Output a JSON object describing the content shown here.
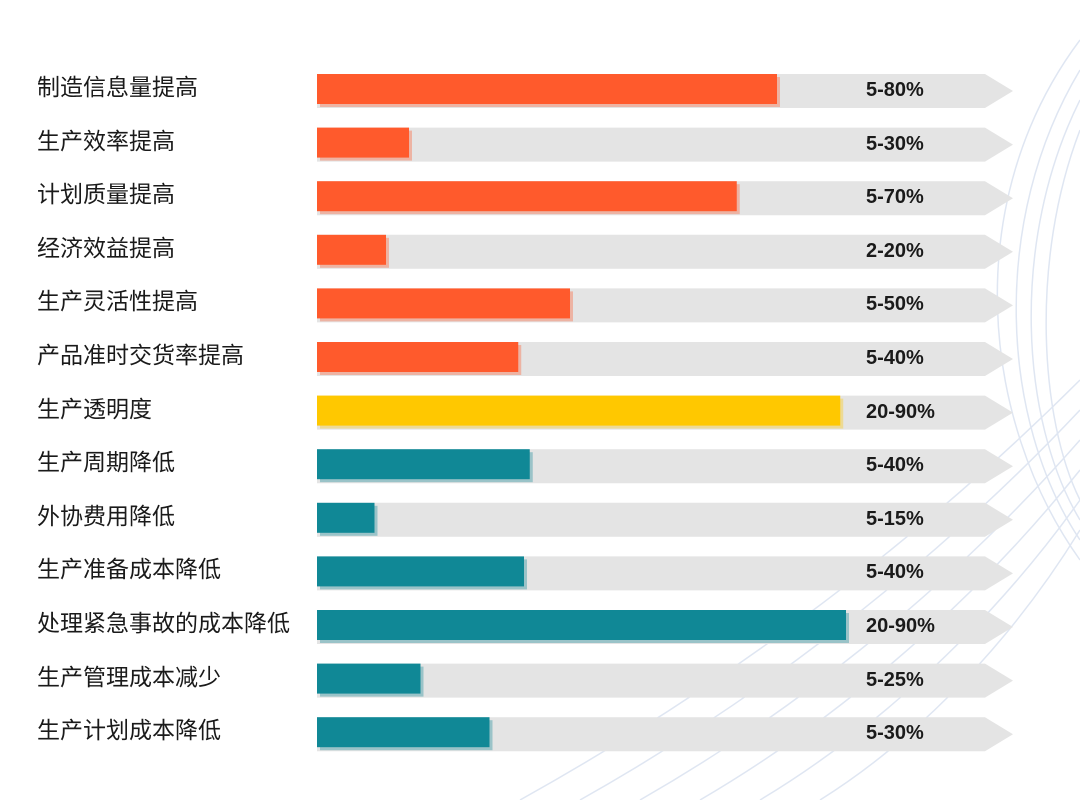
{
  "chart_data": {
    "type": "bar",
    "categories": [
      "制造信息量提高",
      "生产效率提高",
      "计划质量提高",
      "经济效益提高",
      "生产灵活性提高",
      "产品准时交货率提高",
      "生产透明度",
      "生产周期降低",
      "外协费用降低",
      "生产准备成本降低",
      "处理紧急事故的成本降低",
      "生产管理成本减少",
      "生产计划成本降低"
    ],
    "value_labels": [
      "5-80%",
      "5-30%",
      "5-70%",
      "2-20%",
      "5-50%",
      "5-40%",
      "20-90%",
      "5-40%",
      "5-15%",
      "5-40%",
      "20-90%",
      "5-25%",
      "5-30%"
    ],
    "ranges": [
      [
        5,
        80
      ],
      [
        5,
        30
      ],
      [
        5,
        70
      ],
      [
        2,
        20
      ],
      [
        5,
        50
      ],
      [
        5,
        40
      ],
      [
        20,
        90
      ],
      [
        5,
        40
      ],
      [
        5,
        15
      ],
      [
        5,
        40
      ],
      [
        20,
        90
      ],
      [
        5,
        25
      ],
      [
        5,
        30
      ]
    ],
    "bar_values": [
      80,
      16,
      73,
      12,
      44,
      35,
      91,
      37,
      10,
      36,
      92,
      18,
      30
    ],
    "groups": [
      "increase",
      "increase",
      "increase",
      "increase",
      "increase",
      "increase",
      "transparency",
      "decrease",
      "decrease",
      "decrease",
      "decrease",
      "decrease",
      "decrease"
    ],
    "xlim": [
      0,
      100
    ],
    "colors": {
      "increase": "#ff5a2c",
      "transparency": "#ffc800",
      "decrease": "#108896",
      "track": "#e4e4e4"
    }
  }
}
